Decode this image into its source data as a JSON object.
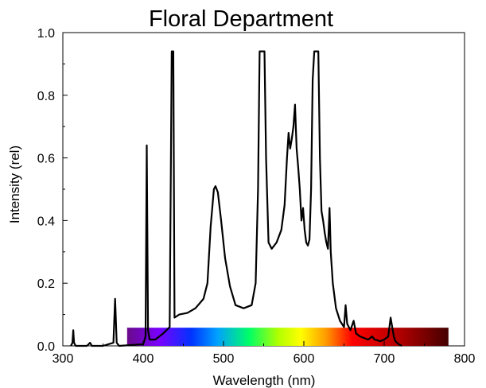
{
  "chart_data": {
    "type": "line",
    "title": "Floral Department",
    "xlabel": "Wavelength (nm)",
    "ylabel": "Intensity (rel)",
    "xlim": [
      300,
      800
    ],
    "ylim": [
      0.0,
      1.0
    ],
    "grid": false,
    "x_ticks": [
      "300",
      "400",
      "500",
      "600",
      "700",
      "800"
    ],
    "y_ticks": [
      "0.0",
      "0.2",
      "0.4",
      "0.6",
      "0.8",
      "1.0"
    ],
    "spectrum_band": {
      "x_start": 380,
      "x_end": 780,
      "height": 0.058
    },
    "series": [
      {
        "color": "#000000",
        "points": [
          [
            310,
            0.0
          ],
          [
            312,
            0.01
          ],
          [
            313,
            0.05
          ],
          [
            314,
            0.01
          ],
          [
            316,
            0.0
          ],
          [
            330,
            0.0
          ],
          [
            334,
            0.01
          ],
          [
            336,
            0.0
          ],
          [
            350,
            0.0
          ],
          [
            363,
            0.01
          ],
          [
            365,
            0.15
          ],
          [
            367,
            0.01
          ],
          [
            370,
            0.0
          ],
          [
            400,
            0.005
          ],
          [
            403,
            0.03
          ],
          [
            404.5,
            0.64
          ],
          [
            406,
            0.05
          ],
          [
            408,
            0.02
          ],
          [
            415,
            0.02
          ],
          [
            425,
            0.04
          ],
          [
            433,
            0.06
          ],
          [
            435.5,
            0.94
          ],
          [
            437.5,
            0.94
          ],
          [
            439,
            0.09
          ],
          [
            445,
            0.1
          ],
          [
            455,
            0.105
          ],
          [
            465,
            0.12
          ],
          [
            475,
            0.15
          ],
          [
            480,
            0.2
          ],
          [
            484,
            0.38
          ],
          [
            488,
            0.5
          ],
          [
            490,
            0.51
          ],
          [
            493,
            0.49
          ],
          [
            497,
            0.4
          ],
          [
            502,
            0.28
          ],
          [
            508,
            0.19
          ],
          [
            515,
            0.13
          ],
          [
            525,
            0.12
          ],
          [
            535,
            0.13
          ],
          [
            540,
            0.2
          ],
          [
            543,
            0.5
          ],
          [
            545,
            0.94
          ],
          [
            551,
            0.94
          ],
          [
            553,
            0.6
          ],
          [
            556,
            0.33
          ],
          [
            560,
            0.31
          ],
          [
            566,
            0.33
          ],
          [
            572,
            0.37
          ],
          [
            576,
            0.45
          ],
          [
            579,
            0.6
          ],
          [
            581,
            0.68
          ],
          [
            583,
            0.63
          ],
          [
            585,
            0.66
          ],
          [
            587,
            0.7
          ],
          [
            589,
            0.77
          ],
          [
            591,
            0.63
          ],
          [
            593,
            0.57
          ],
          [
            595,
            0.5
          ],
          [
            597,
            0.4
          ],
          [
            599,
            0.44
          ],
          [
            601,
            0.37
          ],
          [
            603,
            0.33
          ],
          [
            605,
            0.32
          ],
          [
            607,
            0.34
          ],
          [
            609,
            0.5
          ],
          [
            611,
            0.85
          ],
          [
            613,
            0.94
          ],
          [
            618,
            0.94
          ],
          [
            620,
            0.6
          ],
          [
            622,
            0.43
          ],
          [
            624,
            0.4
          ],
          [
            626,
            0.36
          ],
          [
            628,
            0.33
          ],
          [
            630,
            0.31
          ],
          [
            632,
            0.44
          ],
          [
            633.5,
            0.3
          ],
          [
            636,
            0.2
          ],
          [
            640,
            0.12
          ],
          [
            645,
            0.08
          ],
          [
            650,
            0.06
          ],
          [
            652,
            0.13
          ],
          [
            654,
            0.07
          ],
          [
            658,
            0.05
          ],
          [
            662,
            0.08
          ],
          [
            665,
            0.04
          ],
          [
            670,
            0.03
          ],
          [
            675,
            0.025
          ],
          [
            680,
            0.02
          ],
          [
            685,
            0.03
          ],
          [
            688,
            0.02
          ],
          [
            695,
            0.015
          ],
          [
            700,
            0.02
          ],
          [
            705,
            0.03
          ],
          [
            708,
            0.09
          ],
          [
            710,
            0.06
          ],
          [
            712,
            0.03
          ],
          [
            714,
            0.015
          ],
          [
            718,
            0.005
          ],
          [
            722,
            0.0
          ]
        ]
      }
    ]
  }
}
